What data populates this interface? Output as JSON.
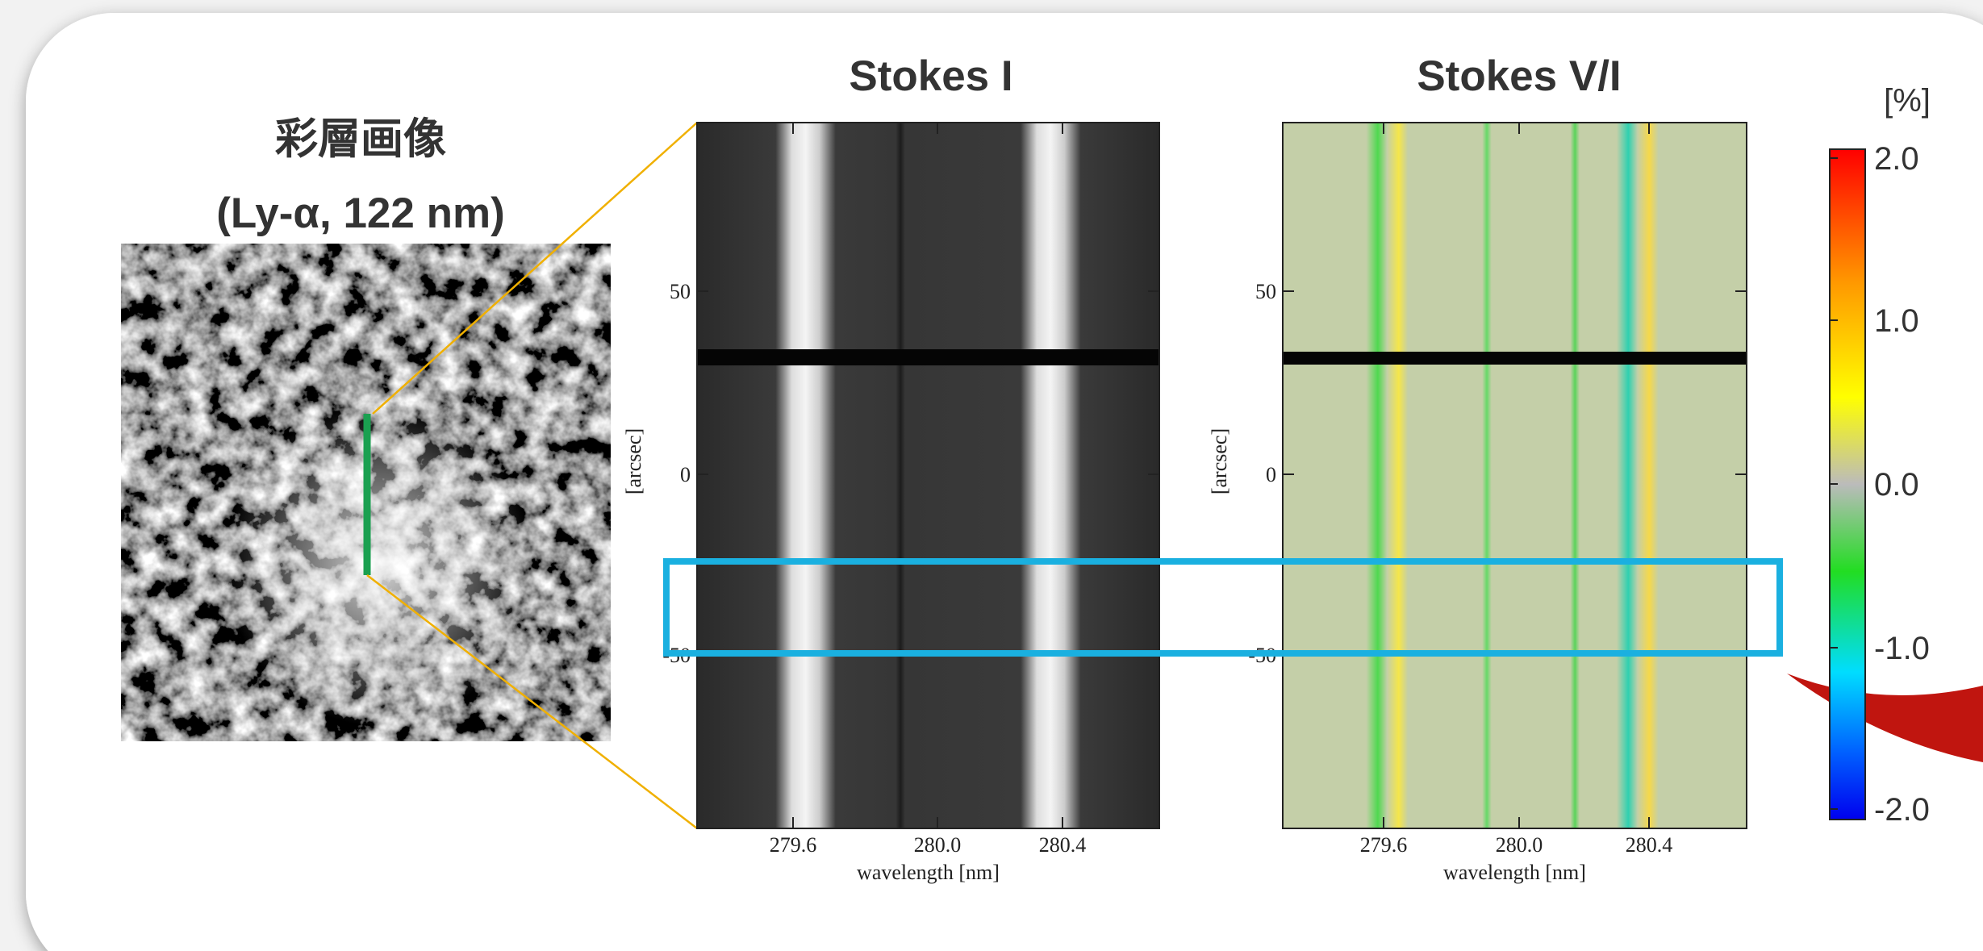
{
  "chromosphere": {
    "title": "彩層画像",
    "subtitle": "(Ly-α, 122 nm)"
  },
  "stokes_i": {
    "title": "Stokes I",
    "yticks": [
      "50",
      "0",
      "-50"
    ],
    "ylabel": "[arcsec]",
    "xticks": [
      "279.6",
      "280.0",
      "280.4"
    ],
    "xlabel": "wavelength [nm]"
  },
  "stokes_vi": {
    "title": "Stokes V/I",
    "yticks": [
      "50",
      "0",
      "-50"
    ],
    "ylabel": "[arcsec]",
    "xticks": [
      "279.6",
      "280.0",
      "280.4"
    ],
    "xlabel": "wavelength [nm]"
  },
  "colorbar": {
    "unit": "[%]",
    "ticks": [
      "2.0",
      "1.0",
      "0.0",
      "-1.0",
      "-2.0"
    ]
  }
}
